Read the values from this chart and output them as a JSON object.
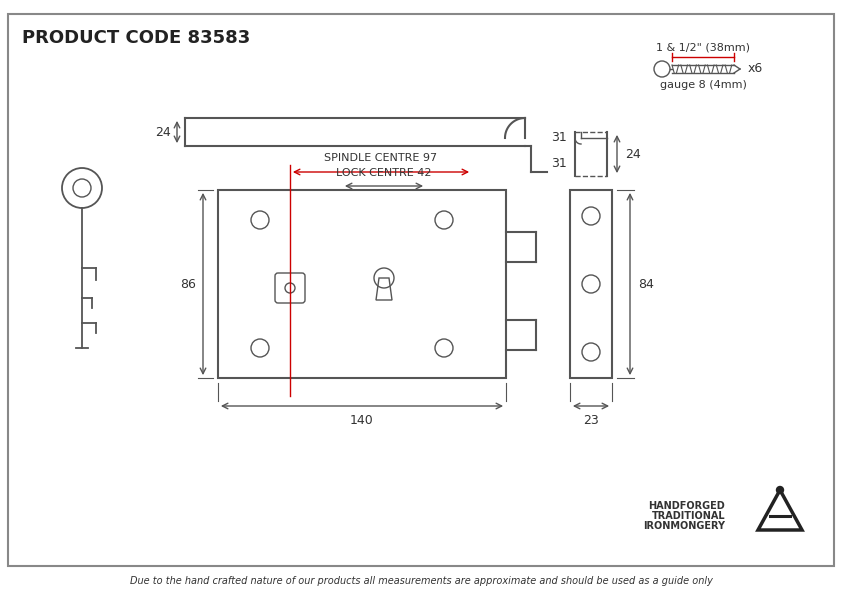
{
  "title": "PRODUCT CODE 83583",
  "footer_text": "Due to the hand crafted nature of our products all measurements are approximate and should be used as a guide only",
  "brand_line1": "HANDFORGED",
  "brand_line2": "TRADITIONAL",
  "brand_line3": "IRONMONGERY",
  "screw_text1": "1 & 1/2\" (38mm)",
  "screw_text2": "x6",
  "screw_text3": "gauge 8 (4mm)",
  "dim_24_top": "24",
  "dim_31_upper": "31",
  "dim_31_lower": "31",
  "dim_24_right": "24",
  "dim_86": "86",
  "dim_140": "140",
  "dim_23": "23",
  "dim_84": "84",
  "spindle_label": "SPINDLE CENTRE 97",
  "lock_label": "LOCK CENTRE 42",
  "drawing_color": "#555555",
  "red_color": "#cc0000",
  "text_color": "#333333"
}
